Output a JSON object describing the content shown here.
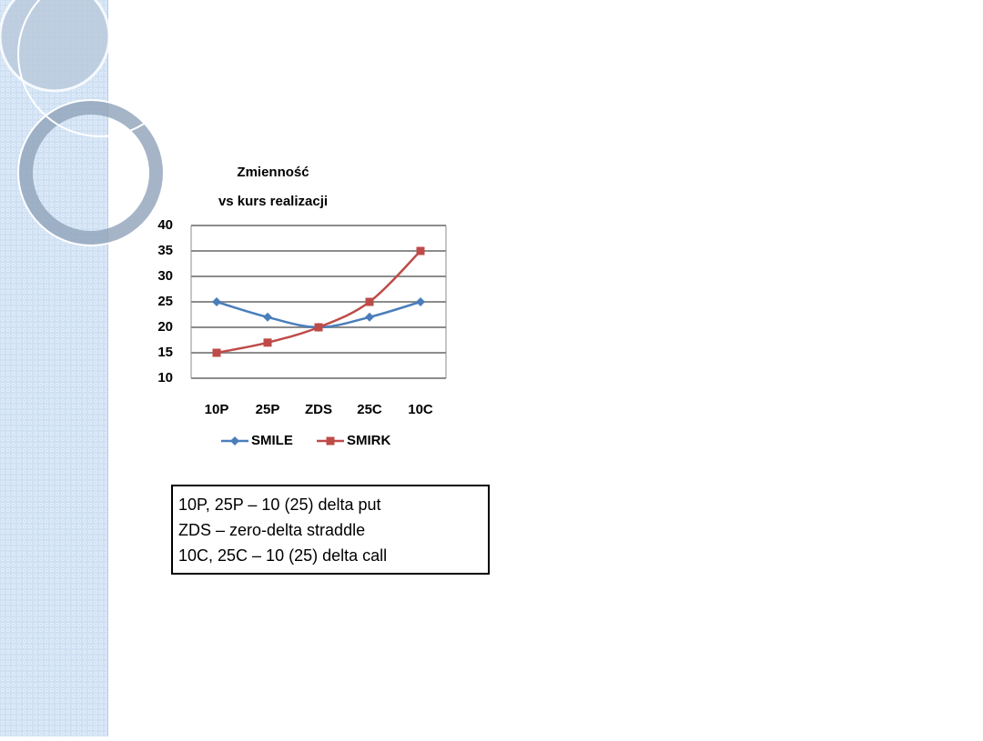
{
  "chart_data": {
    "type": "line",
    "title": [
      "Zmienność",
      "vs kurs realizacji"
    ],
    "categories": [
      "10P",
      "25P",
      "ZDS",
      "25C",
      "10C"
    ],
    "series": [
      {
        "name": "SMILE",
        "color": "#4a7ebb",
        "marker": "diamond",
        "values": [
          25,
          22,
          20,
          22,
          25
        ]
      },
      {
        "name": "SMIRK",
        "color": "#be4b48",
        "marker": "square",
        "values": [
          15,
          17,
          20,
          25,
          35
        ]
      }
    ],
    "ylim": [
      10,
      40
    ],
    "yticks": [
      10,
      15,
      20,
      25,
      30,
      35,
      40
    ],
    "grid": true,
    "smooth": true,
    "legend": "bottom"
  },
  "note": {
    "lines": [
      "10P, 25P – 10 (25) delta put",
      "ZDS – zero-delta straddle",
      "10C, 25C – 10 (25) delta call"
    ]
  }
}
